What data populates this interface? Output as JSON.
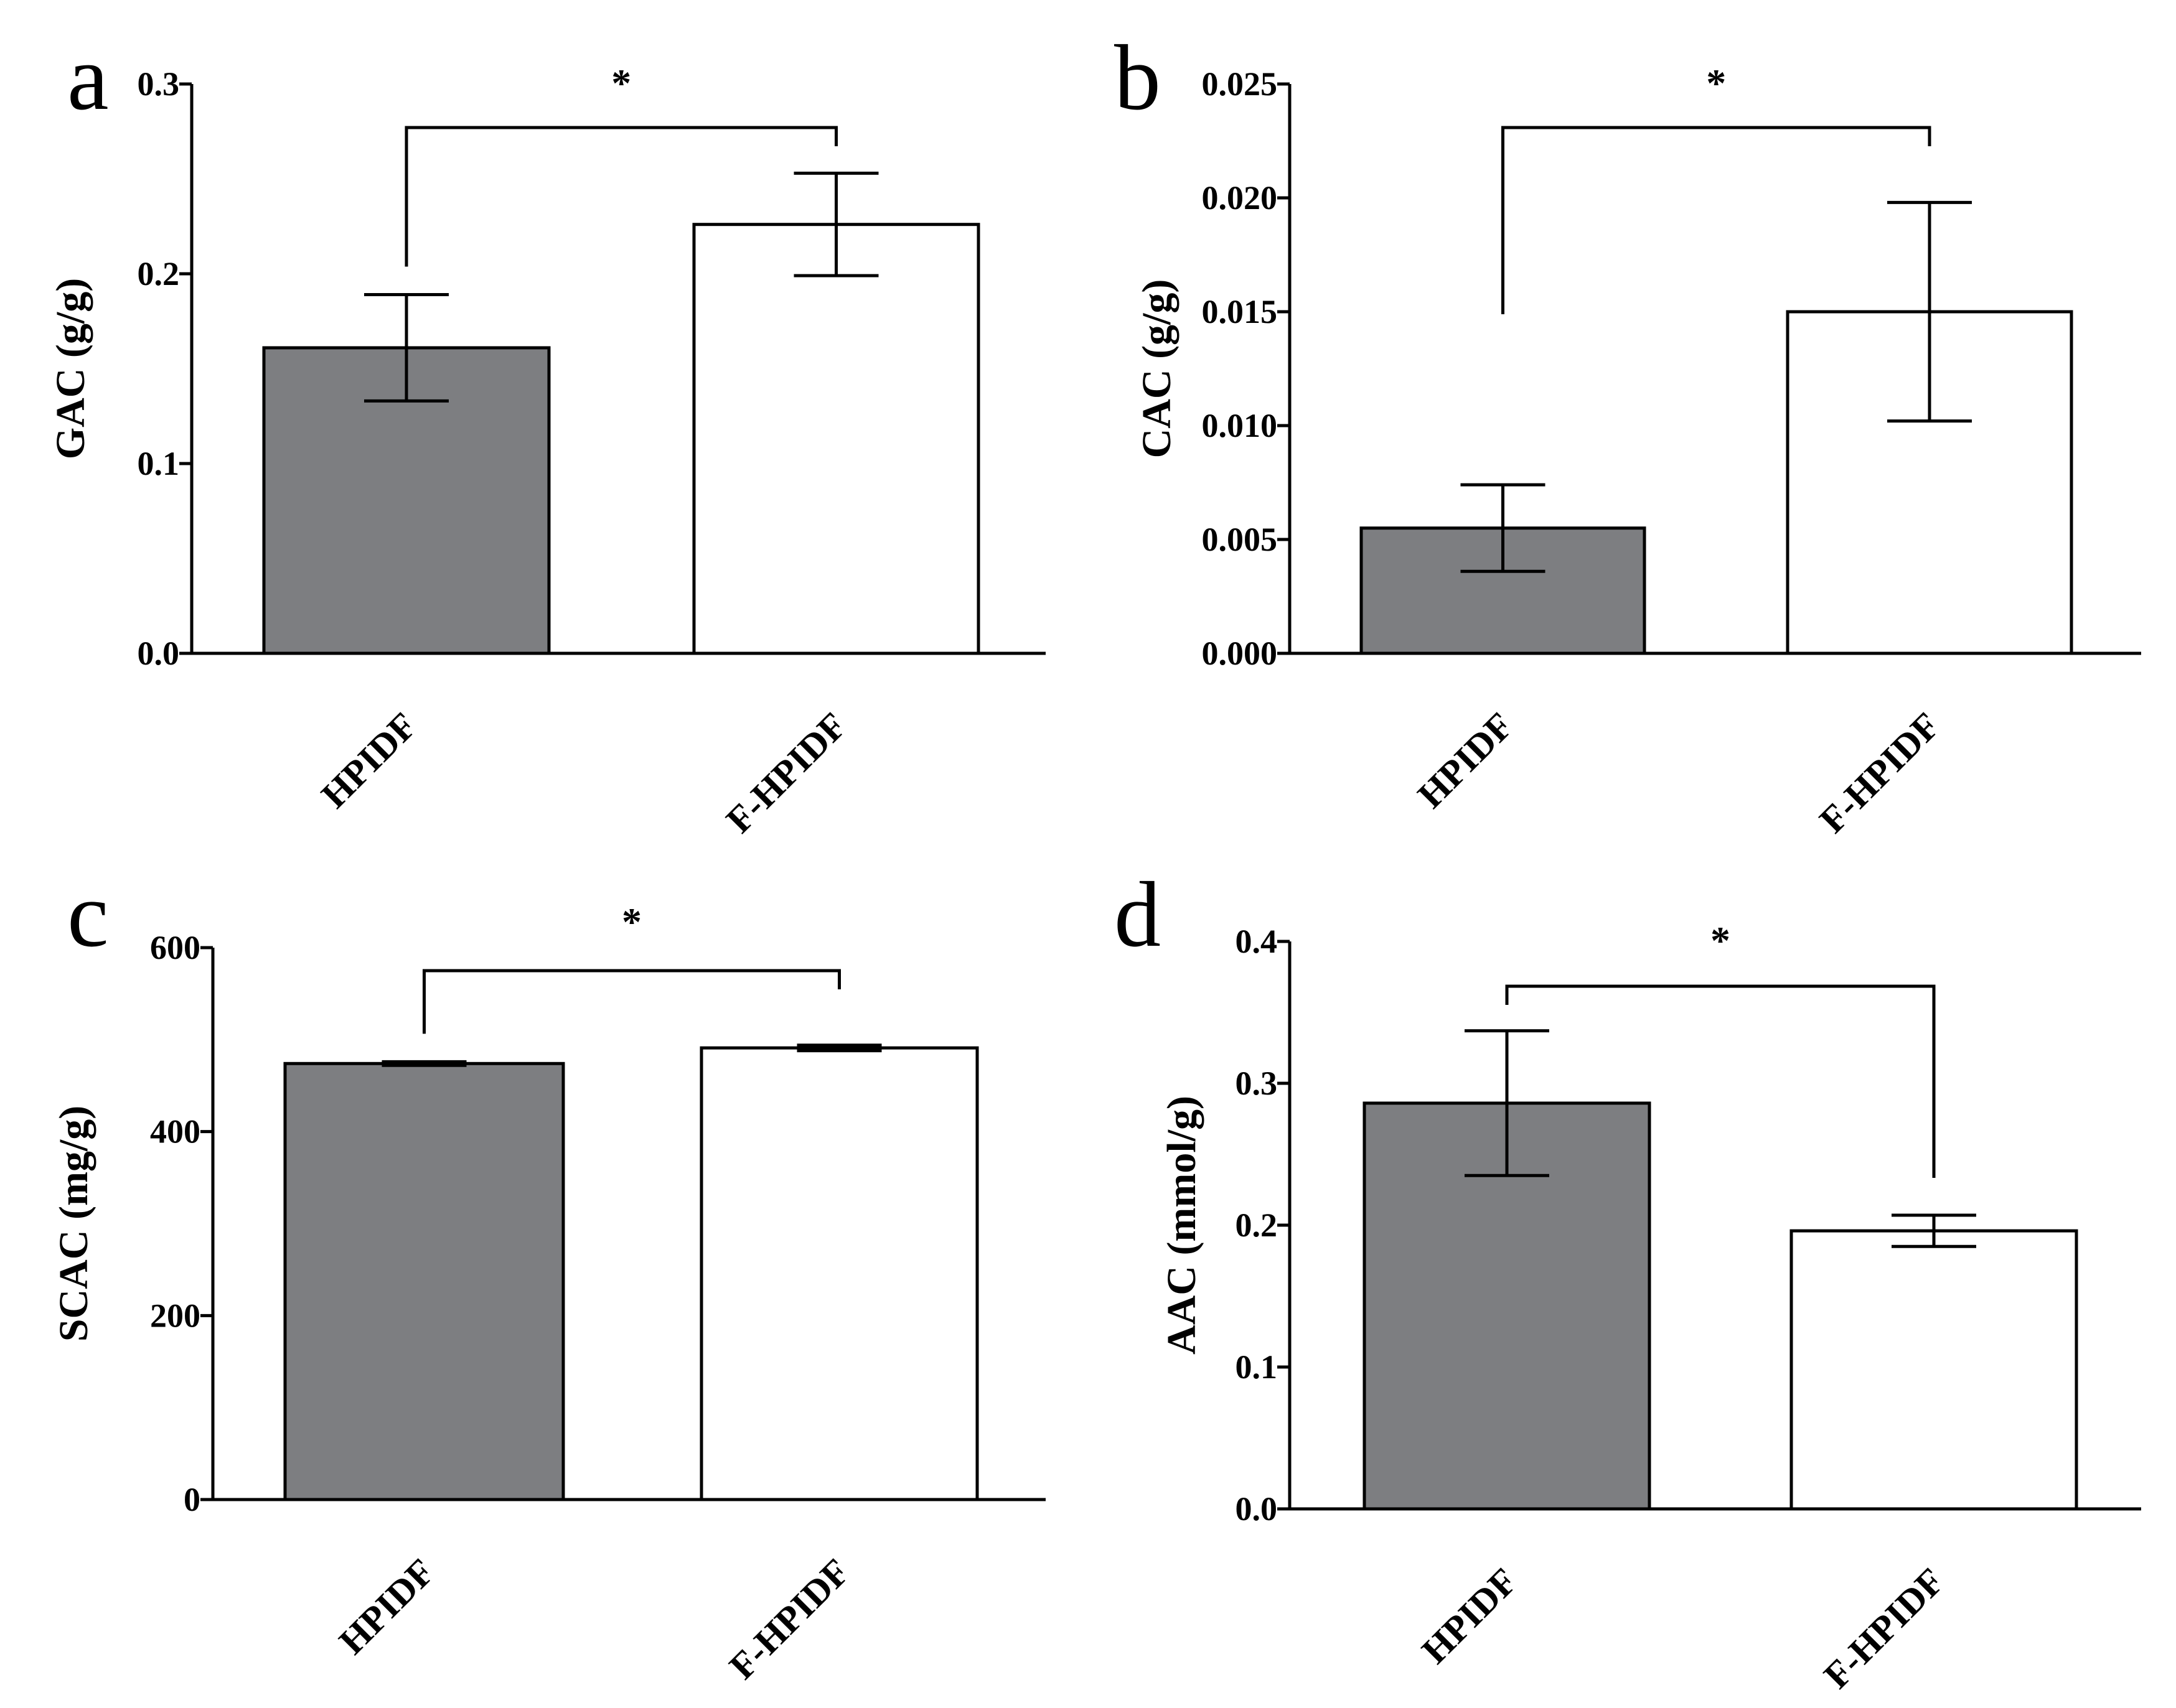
{
  "figure": {
    "colors": {
      "HPIDF": "#7d7e81",
      "F-HPIDF": "#ffffff",
      "axis": "#000000"
    }
  },
  "chart_data": [
    {
      "panel": "a",
      "type": "bar",
      "categories": [
        "HPIDF",
        "F-HPIDF"
      ],
      "values": [
        0.161,
        0.226
      ],
      "errors": [
        0.028,
        0.027
      ],
      "ylabel": "GAC (g/g)",
      "xlabel": "",
      "ylim": [
        0,
        0.3
      ],
      "yticks": [
        0.0,
        0.1,
        0.2,
        0.3
      ],
      "ytick_labels": [
        "0.0",
        "0.1",
        "0.2",
        "0.3"
      ],
      "significance": "*",
      "grid": false
    },
    {
      "panel": "b",
      "type": "bar",
      "categories": [
        "HPIDF",
        "F-HPIDF"
      ],
      "values": [
        0.0055,
        0.015
      ],
      "errors": [
        0.0019,
        0.0048
      ],
      "ylabel": "CAC (g/g)",
      "xlabel": "",
      "ylim": [
        0,
        0.025
      ],
      "yticks": [
        0.0,
        0.005,
        0.01,
        0.015,
        0.02,
        0.025
      ],
      "ytick_labels": [
        "0.000",
        "0.005",
        "0.010",
        "0.015",
        "0.020",
        "0.025"
      ],
      "significance": "*",
      "grid": false
    },
    {
      "panel": "c",
      "type": "bar",
      "categories": [
        "HPIDF",
        "F-HPIDF"
      ],
      "values": [
        474,
        491
      ],
      "errors": [
        2,
        3
      ],
      "ylabel": "SCAC (mg/g)",
      "xlabel": "",
      "ylim": [
        0,
        600
      ],
      "yticks": [
        0,
        200,
        400,
        600
      ],
      "ytick_labels": [
        "0",
        "200",
        "400",
        "600"
      ],
      "significance": "*",
      "grid": false
    },
    {
      "panel": "d",
      "type": "bar",
      "categories": [
        "HPIDF",
        "F-HPIDF"
      ],
      "values": [
        0.286,
        0.196
      ],
      "errors": [
        0.051,
        0.011
      ],
      "ylabel": "AAC (mmol/g)",
      "xlabel": "",
      "ylim": [
        0,
        0.4
      ],
      "yticks": [
        0.0,
        0.1,
        0.2,
        0.3,
        0.4
      ],
      "ytick_labels": [
        "0.0",
        "0.1",
        "0.2",
        "0.3",
        "0.4"
      ],
      "significance": "*",
      "grid": false
    }
  ]
}
